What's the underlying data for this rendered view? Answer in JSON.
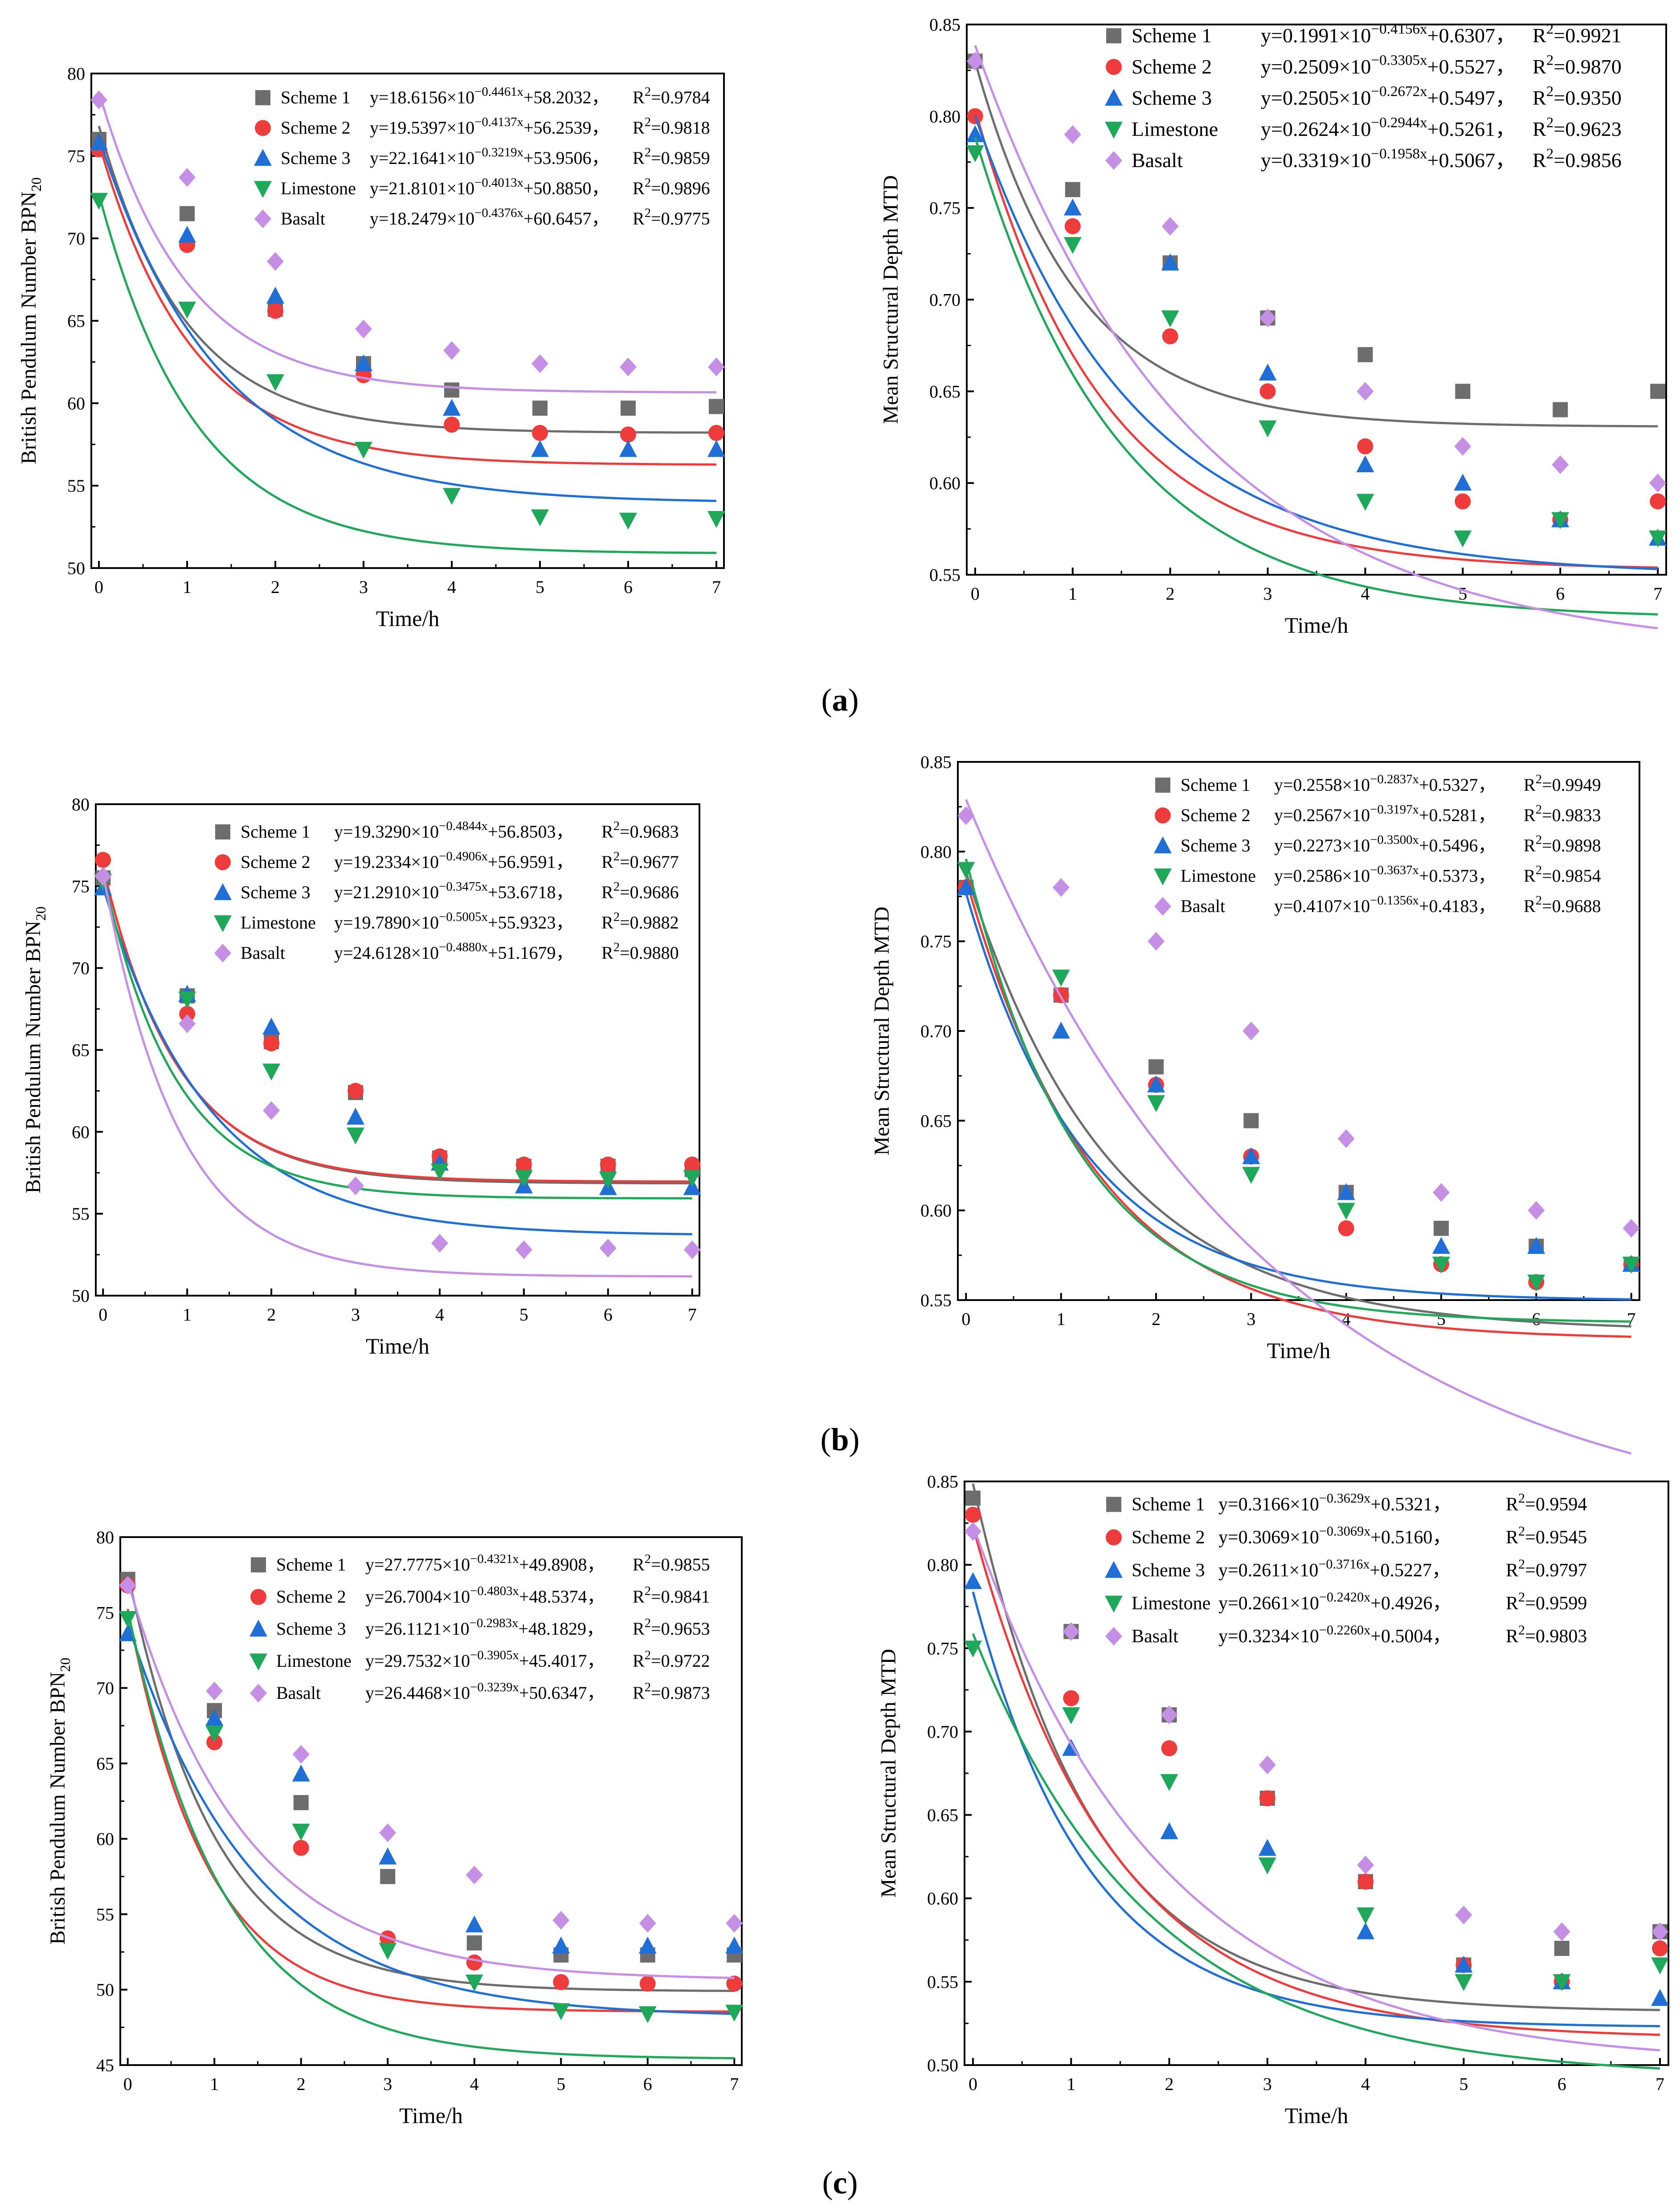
{
  "figure": {
    "captions": [
      "(a)",
      "(b)",
      "(c)"
    ],
    "caption_letters": [
      "a",
      "b",
      "c"
    ]
  },
  "colors": {
    "Scheme 1": "#6d6d6d",
    "Scheme 2": "#ee3b3b",
    "Scheme 3": "#1f6fd6",
    "Limestone": "#1fa85a",
    "Basalt": "#c68fe6"
  },
  "chart_data": [
    {
      "id": "a-bpn",
      "type": "scatter",
      "xlabel": "Time/h",
      "ylabel": "British Pendulum Number BPN20",
      "ylabel_main": "British Pendulum Number BPN",
      "ylabel_sub": "20",
      "x": [
        0,
        1,
        2,
        3,
        4,
        5,
        6,
        7
      ],
      "xlim": [
        0,
        7
      ],
      "ylim": [
        50,
        80
      ],
      "yticks": [
        50,
        55,
        60,
        65,
        70,
        75,
        80
      ],
      "xticks": [
        0,
        1,
        2,
        3,
        4,
        5,
        6,
        7
      ],
      "series": [
        {
          "name": "Scheme 1",
          "marker": "square",
          "values": [
            76.0,
            71.5,
            65.7,
            62.4,
            60.8,
            59.7,
            59.7,
            59.8
          ],
          "fit": {
            "a": 18.6156,
            "b": 0.4461,
            "c": 58.2032
          },
          "equation": "y=18.6156×10",
          "exponent": "−0.4461x",
          "constant": "+58.2032",
          "r2": "R2=0.9784"
        },
        {
          "name": "Scheme 2",
          "marker": "circle",
          "values": [
            75.4,
            69.6,
            65.6,
            61.7,
            58.7,
            58.2,
            58.1,
            58.2
          ],
          "fit": {
            "a": 19.5397,
            "b": 0.4137,
            "c": 56.2539
          },
          "equation": "y=19.5397×10",
          "exponent": "−0.4137x",
          "constant": "+56.2539",
          "r2": "R2=0.9818"
        },
        {
          "name": "Scheme 3",
          "marker": "triangle-up",
          "values": [
            75.8,
            70.2,
            66.5,
            62.4,
            59.7,
            57.2,
            57.2,
            57.2
          ],
          "fit": {
            "a": 22.1641,
            "b": 0.3219,
            "c": 53.9506
          },
          "equation": "y=22.1641×10",
          "exponent": "−0.3219x",
          "constant": "+53.9506",
          "r2": "R2=0.9859"
        },
        {
          "name": "Limestone",
          "marker": "triangle-down",
          "values": [
            72.3,
            65.7,
            61.3,
            57.2,
            54.4,
            53.1,
            52.9,
            53.0
          ],
          "fit": {
            "a": 21.8101,
            "b": 0.4013,
            "c": 50.885
          },
          "equation": "y=21.8101×10",
          "exponent": "−0.4013x",
          "constant": "+50.8850",
          "r2": "R2=0.9896"
        },
        {
          "name": "Basalt",
          "marker": "diamond",
          "values": [
            78.4,
            73.7,
            68.6,
            64.5,
            63.2,
            62.4,
            62.2,
            62.2
          ],
          "fit": {
            "a": 18.2479,
            "b": 0.4376,
            "c": 60.6457
          },
          "equation": "y=18.2479×10",
          "exponent": "−0.4376x",
          "constant": "+60.6457",
          "r2": "R2=0.9775"
        }
      ]
    },
    {
      "id": "a-mtd",
      "type": "scatter",
      "xlabel": "Time/h",
      "ylabel": "Mean Structural Depth MTD",
      "x": [
        0,
        1,
        2,
        3,
        4,
        5,
        6,
        7
      ],
      "xlim": [
        0,
        7
      ],
      "ylim": [
        0.55,
        0.85
      ],
      "yticks": [
        0.55,
        0.6,
        0.65,
        0.7,
        0.75,
        0.8,
        0.85
      ],
      "xticks": [
        0,
        1,
        2,
        3,
        4,
        5,
        6,
        7
      ],
      "series": [
        {
          "name": "Scheme 1",
          "marker": "square",
          "values": [
            0.83,
            0.76,
            0.72,
            0.69,
            0.67,
            0.65,
            0.64,
            0.65
          ],
          "fit": {
            "a": 0.1991,
            "b": 0.4156,
            "c": 0.6307
          },
          "equation": "y=0.1991×10",
          "exponent": "−0.4156x",
          "constant": "+0.6307",
          "r2": "R2=0.9921"
        },
        {
          "name": "Scheme 2",
          "marker": "circle",
          "values": [
            0.8,
            0.74,
            0.68,
            0.65,
            0.62,
            0.59,
            0.58,
            0.59
          ],
          "fit": {
            "a": 0.2509,
            "b": 0.3305,
            "c": 0.5527
          },
          "equation": "y=0.2509×10",
          "exponent": "−0.3305x",
          "constant": "+0.5527",
          "r2": "R2=0.9870"
        },
        {
          "name": "Scheme 3",
          "marker": "triangle-up",
          "values": [
            0.79,
            0.75,
            0.72,
            0.66,
            0.61,
            0.6,
            0.58,
            0.57
          ],
          "fit": {
            "a": 0.2505,
            "b": 0.2672,
            "c": 0.5497
          },
          "equation": "y=0.2505×10",
          "exponent": "−0.2672x",
          "constant": "+0.5497",
          "r2": "R2=0.9350"
        },
        {
          "name": "Limestone",
          "marker": "triangle-down",
          "values": [
            0.78,
            0.73,
            0.69,
            0.63,
            0.59,
            0.57,
            0.58,
            0.57
          ],
          "fit": {
            "a": 0.2624,
            "b": 0.2944,
            "c": 0.5261
          },
          "equation": "y=0.2624×10",
          "exponent": "−0.2944x",
          "constant": "+0.5261",
          "r2": "R2=0.9623"
        },
        {
          "name": "Basalt",
          "marker": "diamond",
          "values": [
            0.83,
            0.79,
            0.74,
            0.69,
            0.65,
            0.62,
            0.61,
            0.6
          ],
          "fit": {
            "a": 0.3319,
            "b": 0.1958,
            "c": 0.5067
          },
          "equation": "y=0.3319×10",
          "exponent": "−0.1958x",
          "constant": "+0.5067",
          "r2": "R2=0.9856"
        }
      ]
    },
    {
      "id": "b-bpn",
      "type": "scatter",
      "xlabel": "Time/h",
      "ylabel": "British Pendulum Number BPN20",
      "ylabel_main": "British Pendulum Number BPN",
      "ylabel_sub": "20",
      "x": [
        0,
        1,
        2,
        3,
        4,
        5,
        6,
        7
      ],
      "xlim": [
        0,
        7
      ],
      "ylim": [
        50,
        80
      ],
      "yticks": [
        50,
        55,
        60,
        65,
        70,
        75,
        80
      ],
      "xticks": [
        0,
        1,
        2,
        3,
        4,
        5,
        6,
        7
      ],
      "series": [
        {
          "name": "Scheme 1",
          "marker": "square",
          "values": [
            75.5,
            68.3,
            65.5,
            62.4,
            58.4,
            57.9,
            57.9,
            57.7
          ],
          "fit": {
            "a": 19.329,
            "b": 0.4844,
            "c": 56.8503
          },
          "equation": "y=19.3290×10",
          "exponent": "−0.4844x",
          "constant": "+56.8503",
          "r2": "R2=0.9683"
        },
        {
          "name": "Scheme 2",
          "marker": "circle",
          "values": [
            76.6,
            67.2,
            65.4,
            62.5,
            58.5,
            58.0,
            58.0,
            58.0
          ],
          "fit": {
            "a": 19.2334,
            "b": 0.4906,
            "c": 56.9591
          },
          "equation": "y=19.2334×10",
          "exponent": "−0.4906x",
          "constant": "+56.9591",
          "r2": "R2=0.9677"
        },
        {
          "name": "Scheme 3",
          "marker": "triangle-up",
          "values": [
            74.9,
            68.4,
            66.4,
            60.9,
            58.1,
            56.7,
            56.6,
            56.6
          ],
          "fit": {
            "a": 21.291,
            "b": 0.3475,
            "c": 53.6718
          },
          "equation": "y=21.2910×10",
          "exponent": "−0.3475x",
          "constant": "+53.6718",
          "r2": "R2=0.9686"
        },
        {
          "name": "Limestone",
          "marker": "triangle-down",
          "values": [
            75.3,
            68.1,
            63.7,
            59.8,
            57.6,
            57.2,
            57.1,
            57.2
          ],
          "fit": {
            "a": 19.789,
            "b": 0.5005,
            "c": 55.9323
          },
          "equation": "y=19.7890×10",
          "exponent": "−0.5005x",
          "constant": "+55.9323",
          "r2": "R2=0.9882"
        },
        {
          "name": "Basalt",
          "marker": "diamond",
          "values": [
            75.6,
            66.6,
            61.3,
            56.7,
            53.2,
            52.8,
            52.9,
            52.8
          ],
          "fit": {
            "a": 24.6128,
            "b": 0.488,
            "c": 51.1679
          },
          "equation": "y=24.6128×10",
          "exponent": "−0.4880x",
          "constant": "+51.1679",
          "r2": "R2=0.9880"
        }
      ]
    },
    {
      "id": "b-mtd",
      "type": "scatter",
      "xlabel": "Time/h",
      "ylabel": "Mean Structural Depth MTD",
      "x": [
        0,
        1,
        2,
        3,
        4,
        5,
        6,
        7
      ],
      "xlim": [
        0,
        7
      ],
      "ylim": [
        0.55,
        0.85
      ],
      "yticks": [
        0.55,
        0.6,
        0.65,
        0.7,
        0.75,
        0.8,
        0.85
      ],
      "xticks": [
        0,
        1,
        2,
        3,
        4,
        5,
        6,
        7
      ],
      "series": [
        {
          "name": "Scheme 1",
          "marker": "square",
          "values": [
            0.78,
            0.72,
            0.68,
            0.65,
            0.61,
            0.59,
            0.58,
            0.57
          ],
          "fit": {
            "a": 0.2558,
            "b": 0.2837,
            "c": 0.5327
          },
          "equation": "y=0.2558×10",
          "exponent": "−0.2837x",
          "constant": "+0.5327",
          "r2": "R2=0.9949"
        },
        {
          "name": "Scheme 2",
          "marker": "circle",
          "values": [
            0.78,
            0.72,
            0.67,
            0.63,
            0.59,
            0.57,
            0.56,
            0.57
          ],
          "fit": {
            "a": 0.2567,
            "b": 0.3197,
            "c": 0.5281
          },
          "equation": "y=0.2567×10",
          "exponent": "−0.3197x",
          "constant": "+0.5281",
          "r2": "R2=0.9833"
        },
        {
          "name": "Scheme 3",
          "marker": "triangle-up",
          "values": [
            0.78,
            0.7,
            0.67,
            0.63,
            0.61,
            0.58,
            0.58,
            0.57
          ],
          "fit": {
            "a": 0.2273,
            "b": 0.35,
            "c": 0.5496
          },
          "equation": "y=0.2273×10",
          "exponent": "−0.3500x",
          "constant": "+0.5496",
          "r2": "R2=0.9898"
        },
        {
          "name": "Limestone",
          "marker": "triangle-down",
          "values": [
            0.79,
            0.73,
            0.66,
            0.62,
            0.6,
            0.57,
            0.56,
            0.57
          ],
          "fit": {
            "a": 0.2586,
            "b": 0.3637,
            "c": 0.5373
          },
          "equation": "y=0.2586×10",
          "exponent": "−0.3637x",
          "constant": "+0.5373",
          "r2": "R2=0.9854"
        },
        {
          "name": "Basalt",
          "marker": "diamond",
          "values": [
            0.82,
            0.78,
            0.75,
            0.7,
            0.64,
            0.61,
            0.6,
            0.59
          ],
          "fit": {
            "a": 0.4107,
            "b": 0.1356,
            "c": 0.4183
          },
          "equation": "y=0.4107×10",
          "exponent": "−0.1356x",
          "constant": "+0.4183",
          "r2": "R2=0.9688"
        }
      ]
    },
    {
      "id": "c-bpn",
      "type": "scatter",
      "xlabel": "Time/h",
      "ylabel": "British Pendulum Number BPN20",
      "ylabel_main": "British Pendulum Number BPN",
      "ylabel_sub": "20",
      "x": [
        0,
        1,
        2,
        3,
        4,
        5,
        6,
        7
      ],
      "xlim": [
        0,
        7
      ],
      "ylim": [
        45,
        80
      ],
      "yticks": [
        45,
        50,
        55,
        60,
        65,
        70,
        75,
        80
      ],
      "xticks": [
        0,
        1,
        2,
        3,
        4,
        5,
        6,
        7
      ],
      "series": [
        {
          "name": "Scheme 1",
          "marker": "square",
          "values": [
            77.2,
            68.5,
            62.4,
            57.5,
            53.1,
            52.3,
            52.3,
            52.3
          ],
          "fit": {
            "a": 27.7775,
            "b": 0.4321,
            "c": 49.8908
          },
          "equation": "y=27.7775×10",
          "exponent": "−0.4321x",
          "constant": "+49.8908",
          "r2": "R2=0.9855"
        },
        {
          "name": "Scheme 2",
          "marker": "circle",
          "values": [
            76.8,
            66.4,
            59.4,
            53.4,
            51.8,
            50.5,
            50.4,
            50.4
          ],
          "fit": {
            "a": 26.7004,
            "b": 0.4803,
            "c": 48.5374
          },
          "equation": "y=26.7004×10",
          "exponent": "−0.4803x",
          "constant": "+48.5374",
          "r2": "R2=0.9841"
        },
        {
          "name": "Scheme 3",
          "marker": "triangle-up",
          "values": [
            73.6,
            68.0,
            64.3,
            58.8,
            54.3,
            52.9,
            52.9,
            52.9
          ],
          "fit": {
            "a": 26.1121,
            "b": 0.2983,
            "c": 48.1829
          },
          "equation": "y=26.1121×10",
          "exponent": "−0.2983x",
          "constant": "+48.1829",
          "r2": "R2=0.9653"
        },
        {
          "name": "Limestone",
          "marker": "triangle-down",
          "values": [
            74.6,
            67.0,
            60.5,
            52.6,
            50.5,
            48.6,
            48.4,
            48.5
          ],
          "fit": {
            "a": 29.7532,
            "b": 0.3905,
            "c": 45.4017
          },
          "equation": "y=29.7532×10",
          "exponent": "−0.3905x",
          "constant": "+45.4017",
          "r2": "R2=0.9722"
        },
        {
          "name": "Basalt",
          "marker": "diamond",
          "values": [
            76.8,
            69.8,
            65.6,
            60.4,
            57.6,
            54.6,
            54.4,
            54.4
          ],
          "fit": {
            "a": 26.4468,
            "b": 0.3239,
            "c": 50.6347
          },
          "equation": "y=26.4468×10",
          "exponent": "−0.3239x",
          "constant": "+50.6347",
          "r2": "R2=0.9873"
        }
      ]
    },
    {
      "id": "c-mtd",
      "type": "scatter",
      "xlabel": "Time/h",
      "ylabel": "Mean Structural Depth MTD",
      "x": [
        0,
        1,
        2,
        3,
        4,
        5,
        6,
        7
      ],
      "xlim": [
        0,
        7
      ],
      "ylim": [
        0.5,
        0.85
      ],
      "yticks": [
        0.5,
        0.55,
        0.6,
        0.65,
        0.7,
        0.75,
        0.8,
        0.85
      ],
      "xticks": [
        0,
        1,
        2,
        3,
        4,
        5,
        6,
        7
      ],
      "series": [
        {
          "name": "Scheme 1",
          "marker": "square",
          "values": [
            0.84,
            0.76,
            0.71,
            0.66,
            0.61,
            0.56,
            0.57,
            0.58
          ],
          "fit": {
            "a": 0.3166,
            "b": 0.3629,
            "c": 0.5321
          },
          "equation": "y=0.3166×10",
          "exponent": "−0.3629x",
          "constant": "+0.5321",
          "r2": "R2=0.9594"
        },
        {
          "name": "Scheme 2",
          "marker": "circle",
          "values": [
            0.83,
            0.72,
            0.69,
            0.66,
            0.61,
            0.56,
            0.55,
            0.57
          ],
          "fit": {
            "a": 0.3069,
            "b": 0.3069,
            "c": 0.516
          },
          "equation": "y=0.3069×10",
          "exponent": "−0.3069x",
          "constant": "+0.5160",
          "r2": "R2=0.9545"
        },
        {
          "name": "Scheme 3",
          "marker": "triangle-up",
          "values": [
            0.79,
            0.69,
            0.64,
            0.63,
            0.58,
            0.56,
            0.55,
            0.54
          ],
          "fit": {
            "a": 0.2611,
            "b": 0.3716,
            "c": 0.5227
          },
          "equation": "y=0.2611×10",
          "exponent": "−0.3716x",
          "constant": "+0.5227",
          "r2": "R2=0.9797"
        },
        {
          "name": "Limestone",
          "marker": "triangle-down",
          "values": [
            0.75,
            0.71,
            0.67,
            0.62,
            0.59,
            0.55,
            0.55,
            0.56
          ],
          "fit": {
            "a": 0.2661,
            "b": 0.242,
            "c": 0.4926
          },
          "equation": "y=0.2661×10",
          "exponent": "−0.2420x",
          "constant": "+0.4926",
          "r2": "R2=0.9599"
        },
        {
          "name": "Basalt",
          "marker": "diamond",
          "values": [
            0.82,
            0.76,
            0.71,
            0.68,
            0.62,
            0.59,
            0.58,
            0.58
          ],
          "fit": {
            "a": 0.3234,
            "b": 0.226,
            "c": 0.5004
          },
          "equation": "y=0.3234×10",
          "exponent": "−0.2260x",
          "constant": "+0.5004",
          "r2": "R2=0.9803"
        }
      ]
    }
  ]
}
